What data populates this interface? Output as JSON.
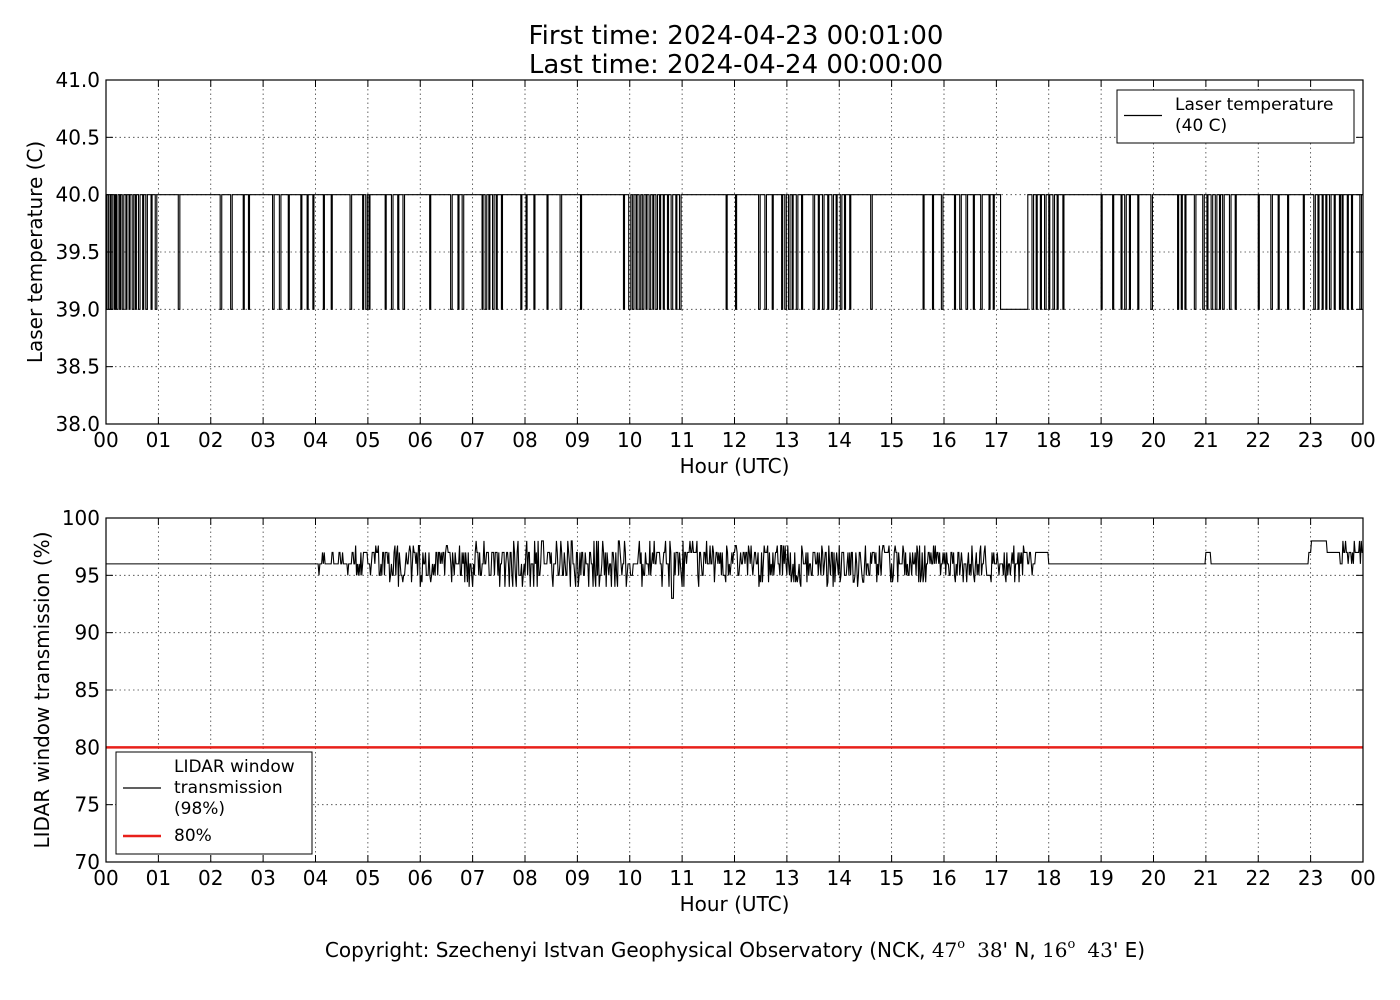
{
  "title_lines": [
    "First time: 2024-04-23 00:01:00",
    "Last time: 2024-04-24 00:00:00"
  ],
  "copyright": {
    "prefix": "Copyright: Szechenyi Istvan Geophysical Observatory (NCK, ",
    "lat_deg": "47",
    "deg_mark": "o",
    "lat_min": "38",
    "lat_suffix": "' N, ",
    "lon_deg": "16",
    "lon_min": "43",
    "lon_suffix": "' E)"
  },
  "chart_data": [
    {
      "type": "line",
      "xlabel": "Hour (UTC)",
      "ylabel": "Laser temperature (C)",
      "xlim": [
        0,
        24
      ],
      "ylim": [
        38.0,
        41.0
      ],
      "yticks": [
        38.0,
        38.5,
        39.0,
        39.5,
        40.0,
        40.5,
        41.0
      ],
      "ytick_labels": [
        "38.0",
        "38.5",
        "39.0",
        "39.5",
        "40.0",
        "40.5",
        "41.0"
      ],
      "xtick_labels": [
        "00",
        "01",
        "02",
        "03",
        "04",
        "05",
        "06",
        "07",
        "08",
        "09",
        "10",
        "11",
        "12",
        "13",
        "14",
        "15",
        "16",
        "17",
        "18",
        "19",
        "20",
        "21",
        "22",
        "23",
        "00"
      ],
      "grid": true,
      "legend_placement": "top-right",
      "series": [
        {
          "name": "Laser temperature\n(40 C)",
          "color": "#000000",
          "description": "signal toggles between 40 and 39",
          "dips_to_39": [
            [
              0.0,
              0.02
            ],
            [
              0.05,
              0.08
            ],
            [
              0.1,
              0.13
            ],
            [
              0.16,
              0.18
            ],
            [
              0.2,
              0.23
            ],
            [
              0.26,
              0.28
            ],
            [
              0.31,
              0.34
            ],
            [
              0.38,
              0.4
            ],
            [
              0.44,
              0.46
            ],
            [
              0.5,
              0.53
            ],
            [
              0.56,
              0.58
            ],
            [
              0.62,
              0.65
            ],
            [
              0.7,
              0.72
            ],
            [
              0.76,
              0.79
            ],
            [
              0.86,
              0.88
            ],
            [
              0.94,
              0.97
            ],
            [
              1.38,
              1.41
            ],
            [
              2.18,
              2.21
            ],
            [
              2.38,
              2.41
            ],
            [
              2.62,
              2.64
            ],
            [
              2.72,
              2.74
            ],
            [
              3.18,
              3.21
            ],
            [
              3.31,
              3.34
            ],
            [
              3.48,
              3.5
            ],
            [
              3.72,
              3.74
            ],
            [
              3.84,
              3.86
            ],
            [
              3.95,
              3.97
            ],
            [
              4.15,
              4.17
            ],
            [
              4.3,
              4.32
            ],
            [
              4.66,
              4.69
            ],
            [
              4.9,
              4.92
            ],
            [
              4.96,
              4.99
            ],
            [
              5.02,
              5.04
            ],
            [
              5.33,
              5.35
            ],
            [
              5.45,
              5.48
            ],
            [
              5.57,
              5.59
            ],
            [
              5.67,
              5.7
            ],
            [
              6.18,
              6.2
            ],
            [
              6.58,
              6.61
            ],
            [
              6.72,
              6.74
            ],
            [
              6.8,
              6.83
            ],
            [
              7.18,
              7.2
            ],
            [
              7.24,
              7.27
            ],
            [
              7.31,
              7.33
            ],
            [
              7.38,
              7.41
            ],
            [
              7.45,
              7.47
            ],
            [
              7.55,
              7.57
            ],
            [
              7.92,
              7.94
            ],
            [
              8.02,
              8.04
            ],
            [
              8.17,
              8.19
            ],
            [
              8.42,
              8.44
            ],
            [
              8.67,
              8.7
            ],
            [
              9.06,
              9.08
            ],
            [
              9.88,
              9.9
            ],
            [
              9.98,
              10.02
            ],
            [
              10.05,
              10.08
            ],
            [
              10.12,
              10.14
            ],
            [
              10.18,
              10.21
            ],
            [
              10.24,
              10.27
            ],
            [
              10.31,
              10.33
            ],
            [
              10.37,
              10.4
            ],
            [
              10.44,
              10.46
            ],
            [
              10.5,
              10.53
            ],
            [
              10.57,
              10.59
            ],
            [
              10.64,
              10.66
            ],
            [
              10.72,
              10.74
            ],
            [
              10.79,
              10.82
            ],
            [
              10.88,
              10.9
            ],
            [
              10.95,
              10.98
            ],
            [
              11.84,
              11.86
            ],
            [
              12.02,
              12.04
            ],
            [
              12.46,
              12.49
            ],
            [
              12.58,
              12.61
            ],
            [
              12.72,
              12.74
            ],
            [
              12.9,
              12.92
            ],
            [
              12.96,
              12.99
            ],
            [
              13.03,
              13.06
            ],
            [
              13.1,
              13.12
            ],
            [
              13.18,
              13.21
            ],
            [
              13.28,
              13.3
            ],
            [
              13.5,
              13.53
            ],
            [
              13.6,
              13.62
            ],
            [
              13.68,
              13.71
            ],
            [
              13.78,
              13.8
            ],
            [
              13.86,
              13.89
            ],
            [
              13.94,
              13.96
            ],
            [
              14.02,
              14.05
            ],
            [
              14.1,
              14.12
            ],
            [
              14.2,
              14.22
            ],
            [
              14.6,
              14.63
            ],
            [
              15.6,
              15.62
            ],
            [
              15.78,
              15.8
            ],
            [
              15.95,
              15.98
            ],
            [
              16.2,
              16.22
            ],
            [
              16.3,
              16.33
            ],
            [
              16.42,
              16.45
            ],
            [
              16.56,
              16.58
            ],
            [
              16.7,
              16.73
            ],
            [
              16.86,
              16.88
            ],
            [
              16.94,
              16.96
            ],
            [
              17.08,
              17.6
            ],
            [
              17.68,
              17.71
            ],
            [
              17.76,
              17.78
            ],
            [
              17.84,
              17.86
            ],
            [
              17.92,
              17.95
            ],
            [
              18.0,
              18.02
            ],
            [
              18.08,
              18.11
            ],
            [
              18.16,
              18.18
            ],
            [
              18.27,
              18.29
            ],
            [
              19.0,
              19.02
            ],
            [
              19.22,
              19.24
            ],
            [
              19.38,
              19.4
            ],
            [
              19.45,
              19.48
            ],
            [
              19.54,
              19.56
            ],
            [
              19.7,
              19.72
            ],
            [
              19.95,
              19.98
            ],
            [
              20.46,
              20.48
            ],
            [
              20.53,
              20.55
            ],
            [
              20.6,
              20.62
            ],
            [
              20.78,
              20.81
            ],
            [
              20.94,
              20.97
            ],
            [
              21.02,
              21.04
            ],
            [
              21.1,
              21.13
            ],
            [
              21.18,
              21.21
            ],
            [
              21.26,
              21.28
            ],
            [
              21.32,
              21.35
            ],
            [
              21.45,
              21.48
            ],
            [
              21.56,
              21.58
            ],
            [
              22.0,
              22.02
            ],
            [
              22.24,
              22.27
            ],
            [
              22.38,
              22.4
            ],
            [
              22.56,
              22.58
            ],
            [
              22.86,
              22.88
            ],
            [
              23.06,
              23.09
            ],
            [
              23.14,
              23.16
            ],
            [
              23.22,
              23.24
            ],
            [
              23.29,
              23.31
            ],
            [
              23.36,
              23.39
            ],
            [
              23.45,
              23.47
            ],
            [
              23.55,
              23.57
            ],
            [
              23.6,
              23.62
            ],
            [
              23.7,
              23.72
            ],
            [
              23.78,
              23.8
            ],
            [
              23.94,
              23.97
            ]
          ]
        }
      ]
    },
    {
      "type": "line",
      "xlabel": "Hour (UTC)",
      "ylabel": "LIDAR window transmission (%)",
      "xlim": [
        0,
        24
      ],
      "ylim": [
        70,
        100
      ],
      "yticks": [
        70,
        75,
        80,
        85,
        90,
        95,
        100
      ],
      "ytick_labels": [
        "70",
        "75",
        "80",
        "85",
        "90",
        "95",
        "100"
      ],
      "xtick_labels": [
        "00",
        "01",
        "02",
        "03",
        "04",
        "05",
        "06",
        "07",
        "08",
        "09",
        "10",
        "11",
        "12",
        "13",
        "14",
        "15",
        "16",
        "17",
        "18",
        "19",
        "20",
        "21",
        "22",
        "23",
        "00"
      ],
      "grid": true,
      "legend_placement": "bottom-left",
      "series": [
        {
          "name": "LIDAR window\ntransmission\n(98%)",
          "color": "#000000",
          "baseline": 96,
          "noisy_interval": [
            4.0,
            17.8
          ],
          "values_x": [
            0,
            4.05,
            4.08,
            4.12,
            4.25,
            4.28,
            4.32,
            4.45,
            4.5,
            4.55,
            4.7,
            4.75,
            4.8,
            17.7,
            17.75,
            18,
            20.95,
            21.0,
            21.05,
            21.1,
            22.85,
            22.95,
            23.0,
            23.2,
            23.3,
            23.5,
            23.55,
            23.6,
            23.7,
            23.8,
            23.85,
            23.95,
            24.0
          ],
          "values_y": [
            96,
            96,
            97,
            96,
            96,
            97,
            96,
            96,
            95,
            96,
            96,
            97,
            96,
            96,
            97,
            96,
            96,
            97,
            97,
            96,
            96,
            97,
            98,
            98,
            97,
            97,
            96,
            97,
            97,
            96,
            97,
            97,
            98
          ]
        },
        {
          "name": "80%",
          "color": "#e8201a",
          "values_x": [
            0,
            24
          ],
          "values_y": [
            80,
            80
          ]
        }
      ]
    }
  ]
}
